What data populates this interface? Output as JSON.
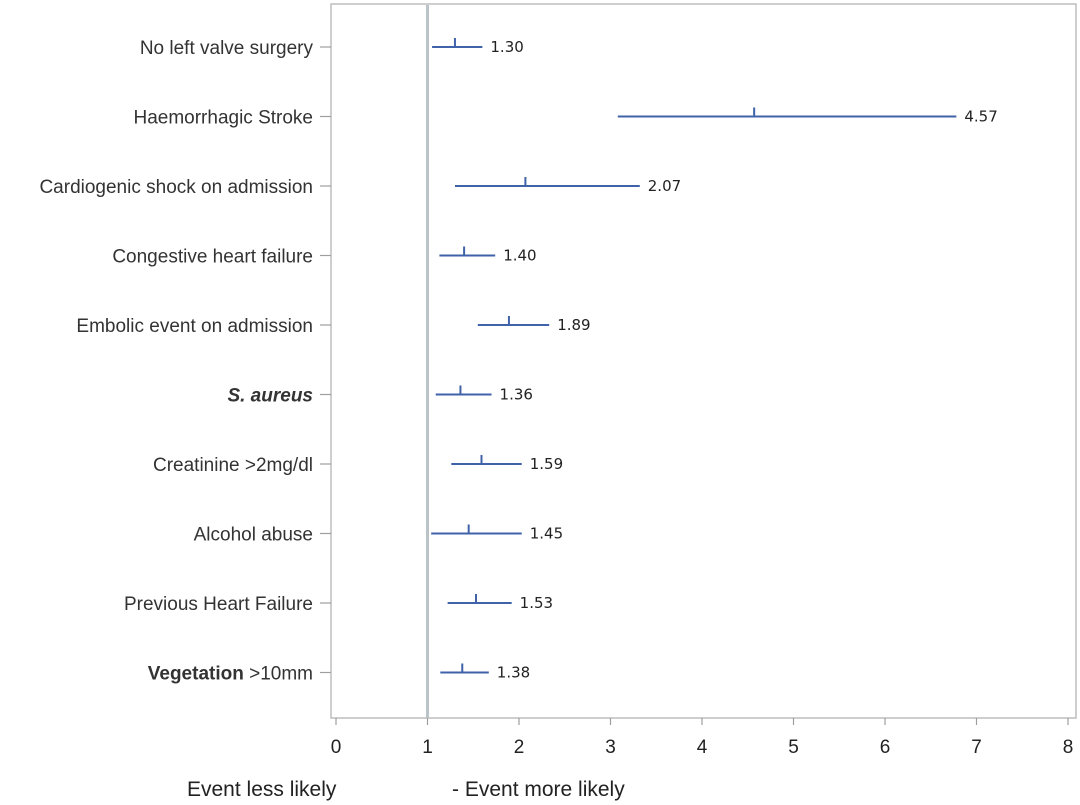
{
  "chart_data": {
    "type": "forest",
    "xlim": [
      0,
      8
    ],
    "x_ticks": [
      "0",
      "1",
      "2",
      "3",
      "4",
      "5",
      "6",
      "7",
      "8"
    ],
    "reference_line": 1,
    "grid": false,
    "rows": [
      {
        "parts": [
          {
            "text": "No left valve surgery",
            "style": "normal"
          }
        ],
        "estimate": 1.3,
        "lower": 1.05,
        "upper": 1.6,
        "label": "1.30"
      },
      {
        "parts": [
          {
            "text": "Haemorrhagic Stroke",
            "style": "normal"
          }
        ],
        "estimate": 4.57,
        "lower": 3.08,
        "upper": 6.78,
        "label": "4.57"
      },
      {
        "parts": [
          {
            "text": "Cardiogenic shock on admission",
            "style": "normal"
          }
        ],
        "estimate": 2.07,
        "lower": 1.3,
        "upper": 3.32,
        "label": "2.07"
      },
      {
        "parts": [
          {
            "text": "Congestive heart failure",
            "style": "normal"
          }
        ],
        "estimate": 1.4,
        "lower": 1.13,
        "upper": 1.74,
        "label": "1.40"
      },
      {
        "parts": [
          {
            "text": "Embolic event on admission",
            "style": "normal"
          }
        ],
        "estimate": 1.89,
        "lower": 1.55,
        "upper": 2.33,
        "label": "1.89"
      },
      {
        "parts": [
          {
            "text": "S. aureus",
            "style": "bold-italic"
          }
        ],
        "estimate": 1.36,
        "lower": 1.09,
        "upper": 1.7,
        "label": "1.36"
      },
      {
        "parts": [
          {
            "text": "Creatinine >2mg/dl",
            "style": "normal"
          }
        ],
        "estimate": 1.59,
        "lower": 1.26,
        "upper": 2.03,
        "label": "1.59"
      },
      {
        "parts": [
          {
            "text": "Alcohol abuse",
            "style": "normal"
          }
        ],
        "estimate": 1.45,
        "lower": 1.04,
        "upper": 2.03,
        "label": "1.45"
      },
      {
        "parts": [
          {
            "text": "Previous Heart Failure",
            "style": "normal"
          }
        ],
        "estimate": 1.53,
        "lower": 1.22,
        "upper": 1.92,
        "label": "1.53"
      },
      {
        "parts": [
          {
            "text": "Vegetation",
            "style": "bold"
          },
          {
            "text": " >10mm",
            "style": "normal"
          }
        ],
        "estimate": 1.38,
        "lower": 1.14,
        "upper": 1.67,
        "label": "1.38"
      }
    ],
    "footer_left": "Event less likely",
    "footer_right": "- Event more likely",
    "colors": {
      "ci": "#3f62a8",
      "reference_line": "#b9c3c8",
      "frame": "#bdbdbd"
    }
  }
}
